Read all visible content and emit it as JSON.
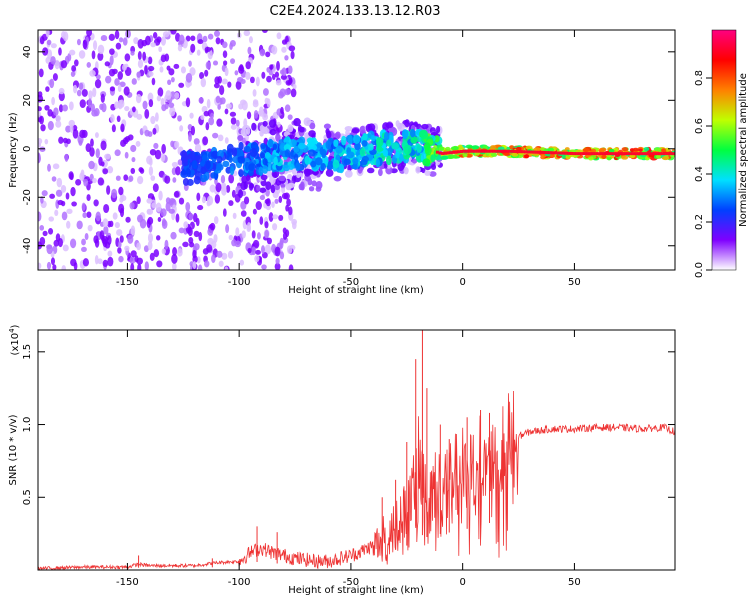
{
  "title": "C2E4.2024.133.13.12.R03",
  "colors": {
    "spectrogram_dot": "#6a00ff",
    "snr_line": "#ee3333",
    "axis": "#000000"
  },
  "chart_data": [
    {
      "type": "heatmap",
      "xlabel": "Height of straight line (km)",
      "ylabel": "Frequency (Hz)",
      "xlim": [
        -190,
        95
      ],
      "ylim": [
        -50,
        49
      ],
      "xticks": [
        -150,
        -100,
        -50,
        0,
        50
      ],
      "yticks": [
        -40,
        -20,
        0,
        20,
        40
      ],
      "colorbar": {
        "label": "Normalized spectral amplitude",
        "range": [
          0,
          1
        ],
        "ticks": [
          "0.0",
          "0.2",
          "0.4",
          "0.6",
          "0.8"
        ],
        "colormap": [
          "#ffffff",
          "#7f00ff",
          "#0040ff",
          "#00e0ff",
          "#00ff40",
          "#c0ff00",
          "#ff8000",
          "#ff0000",
          "#ff0080"
        ]
      },
      "ridge": {
        "x": [
          -120,
          -100,
          -80,
          -60,
          -40,
          -20,
          -10,
          0,
          20,
          50,
          80,
          95
        ],
        "freq": [
          -8,
          -5,
          -2,
          -3,
          0,
          1,
          -2,
          -1,
          -1,
          -2,
          -2,
          -2
        ],
        "amplitude": [
          0.15,
          0.2,
          0.3,
          0.3,
          0.35,
          0.4,
          0.7,
          0.8,
          0.85,
          0.9,
          0.9,
          0.8
        ]
      }
    },
    {
      "type": "line",
      "xlabel": "Height of straight line (km)",
      "ylabel": "SNR (10 * v/v)",
      "multiplier_label": "(x10",
      "multiplier_exp": "4",
      "multiplier_close": ")",
      "xlim": [
        -190,
        95
      ],
      "ylim": [
        0,
        1.65
      ],
      "xticks": [
        -150,
        -100,
        -50,
        0,
        50
      ],
      "yticks": [
        "0.5",
        "1.0",
        "1.5"
      ],
      "ytick_values": [
        0.5,
        1.0,
        1.5
      ],
      "series": [
        {
          "x": [
            -190,
            -170,
            -150,
            -145,
            -140,
            -120,
            -110,
            -100,
            -95,
            -90,
            -85,
            -80,
            -75,
            -70,
            -65,
            -60,
            -55,
            -50,
            -45,
            -40,
            -35,
            -30,
            -25,
            -22,
            -20,
            -18,
            -15,
            -12,
            -10,
            -5,
            0,
            5,
            10,
            15,
            20,
            25,
            30,
            40,
            50,
            60,
            70,
            80,
            90,
            95
          ],
          "y": [
            0.01,
            0.02,
            0.02,
            0.04,
            0.03,
            0.03,
            0.05,
            0.06,
            0.12,
            0.15,
            0.12,
            0.1,
            0.08,
            0.07,
            0.06,
            0.06,
            0.08,
            0.1,
            0.13,
            0.17,
            0.25,
            0.35,
            0.42,
            0.55,
            0.9,
            0.6,
            0.55,
            0.6,
            0.62,
            0.65,
            0.7,
            0.72,
            0.8,
            0.82,
            0.88,
            0.92,
            0.95,
            0.97,
            0.97,
            0.98,
            0.98,
            0.97,
            0.98,
            0.95
          ],
          "spikes": [
            {
              "x": -145,
              "y": 0.1
            },
            {
              "x": -112,
              "y": 0.08
            },
            {
              "x": -92,
              "y": 0.3
            },
            {
              "x": -83,
              "y": 0.26
            },
            {
              "x": -36,
              "y": 0.5
            },
            {
              "x": -30,
              "y": 0.62
            },
            {
              "x": -25,
              "y": 0.88
            },
            {
              "x": -21,
              "y": 1.45
            },
            {
              "x": -18,
              "y": 1.65
            },
            {
              "x": -16,
              "y": 1.25
            },
            {
              "x": -10,
              "y": 1.0
            },
            {
              "x": -6,
              "y": 0.9
            },
            {
              "x": 2,
              "y": 1.05
            },
            {
              "x": 8,
              "y": 1.1
            },
            {
              "x": 12,
              "y": 1.08
            }
          ]
        }
      ]
    }
  ]
}
